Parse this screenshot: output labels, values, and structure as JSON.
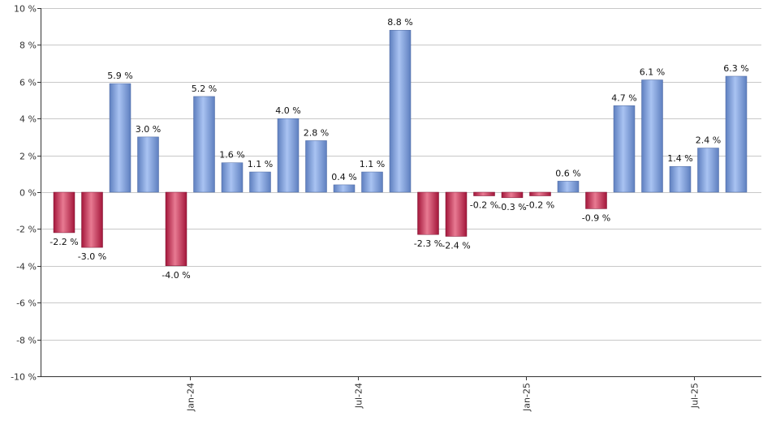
{
  "chart_data": {
    "type": "bar",
    "ylim": [
      -10,
      10
    ],
    "y_ticks": [
      -10,
      -8,
      -6,
      -4,
      -2,
      0,
      2,
      4,
      6,
      8,
      10
    ],
    "y_tick_suffix": " %",
    "grid": true,
    "legend": "none",
    "x_tick_labels": [
      {
        "label": "Jan-24",
        "after_index": 4
      },
      {
        "label": "Jul-24",
        "after_index": 10
      },
      {
        "label": "Jan-25",
        "after_index": 16
      },
      {
        "label": "Jul-25",
        "after_index": 22
      }
    ],
    "values": [
      -2.2,
      -3.0,
      5.9,
      3.0,
      -4.0,
      5.2,
      1.6,
      1.1,
      4.0,
      2.8,
      0.4,
      1.1,
      8.8,
      -2.3,
      -2.4,
      -0.2,
      -0.3,
      -0.2,
      0.6,
      -0.9,
      4.7,
      6.1,
      1.4,
      2.4,
      6.3
    ],
    "value_labels": [
      "-2.2 %",
      "-3.0 %",
      "5.9 %",
      "3.0 %",
      "-4.0 %",
      "5.2 %",
      "1.6 %",
      "1.1 %",
      "4.0 %",
      "2.8 %",
      "0.4 %",
      "1.1 %",
      "8.8 %",
      "-2.3 %",
      "-2.4 %",
      "-0.2 %",
      "-0.3 %",
      "-0.2 %",
      "0.6 %",
      "-0.9 %",
      "4.7 %",
      "6.1 %",
      "1.4 %",
      "2.4 %",
      "6.3 %"
    ],
    "colors": {
      "positive_dark": "#5e7fbf",
      "positive_light": "#a9c3f2",
      "negative_dark": "#a3163a",
      "negative_light": "#e87a92",
      "grid": "#c8c8c8",
      "axis": "#333333"
    }
  }
}
